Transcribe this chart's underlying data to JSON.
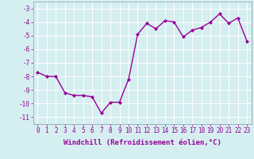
{
  "x": [
    0,
    1,
    2,
    3,
    4,
    5,
    6,
    7,
    8,
    9,
    10,
    11,
    12,
    13,
    14,
    15,
    16,
    17,
    18,
    19,
    20,
    21,
    22,
    23
  ],
  "y": [
    -7.7,
    -8.0,
    -8.0,
    -9.2,
    -9.4,
    -9.4,
    -9.5,
    -10.7,
    -9.9,
    -9.9,
    -8.2,
    -4.9,
    -4.1,
    -4.5,
    -3.9,
    -4.0,
    -5.1,
    -4.6,
    -4.4,
    -4.0,
    -3.4,
    -4.1,
    -3.7,
    -5.4
  ],
  "line_color": "#990099",
  "marker": "D",
  "marker_size": 2.0,
  "line_width": 1.0,
  "xlabel": "Windchill (Refroidissement éolien,°C)",
  "xlabel_fontsize": 6.5,
  "xlabel_color": "#990099",
  "ylabel_ticks": [
    -3,
    -4,
    -5,
    -6,
    -7,
    -8,
    -9,
    -10,
    -11
  ],
  "xtick_labels": [
    "0",
    "1",
    "2",
    "3",
    "4",
    "5",
    "6",
    "7",
    "8",
    "9",
    "10",
    "11",
    "12",
    "13",
    "14",
    "15",
    "16",
    "17",
    "18",
    "19",
    "20",
    "21",
    "22",
    "23"
  ],
  "ylim": [
    -11.5,
    -2.5
  ],
  "xlim": [
    -0.5,
    23.5
  ],
  "bg_color": "#d5eef0",
  "grid_color": "#b0c8cc",
  "tick_color": "#990099",
  "tick_fontsize": 5.5,
  "ylabel_fontsize": 5.5
}
